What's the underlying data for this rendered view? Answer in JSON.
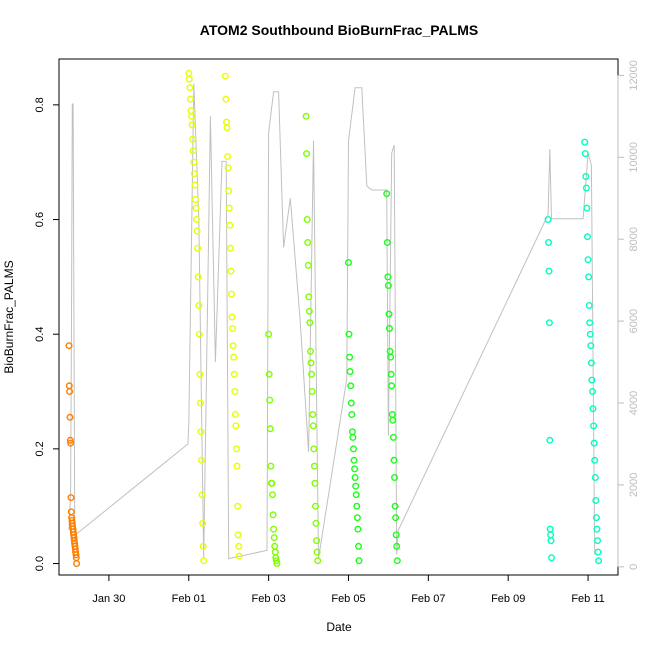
{
  "chart_data": {
    "type": "scatter",
    "title": "ATOM2 Southbound BioBurnFrac_PALMS",
    "xlabel": "Date",
    "ylabel": "BioBurnFrac_PALMS",
    "x_ticks": [
      "Jan 30",
      "Feb 01",
      "Feb 03",
      "Feb 05",
      "Feb 07",
      "Feb 09",
      "Feb 11"
    ],
    "y_ticks": [
      "0.0",
      "0.2",
      "0.4",
      "0.6",
      "0.8"
    ],
    "y2_ticks": [
      "0",
      "2000",
      "4000",
      "6000",
      "8000",
      "10000",
      "12000"
    ],
    "xlim": [
      "2017-01-28 18:00",
      "2017-02-11 18:00"
    ],
    "ylim": [
      -0.02,
      0.88
    ],
    "y2lim": [
      -200,
      12400
    ],
    "grid": false,
    "legend": "none",
    "secondary_series": {
      "axis": "right",
      "color": "#c0c0c0",
      "x": [
        "2017-01-29 00:00",
        "2017-01-29 01:00",
        "2017-01-29 01:30",
        "2017-01-29 02:00",
        "2017-01-29 02:30",
        "2017-01-29 03:30",
        "2017-01-29 04:30",
        "2017-01-31 23:30",
        "2017-02-01 00:00",
        "2017-02-01 03:00",
        "2017-02-01 06:00",
        "2017-02-01 09:00",
        "2017-02-01 13:00",
        "2017-02-01 16:00",
        "2017-02-01 20:00",
        "2017-02-01 22:30",
        "2017-02-02 00:00",
        "2017-02-02 23:00",
        "2017-02-03 00:00",
        "2017-02-03 03:00",
        "2017-02-03 06:00",
        "2017-02-03 09:00",
        "2017-02-03 13:00",
        "2017-02-03 19:00",
        "2017-02-04 00:00",
        "2017-02-04 03:00",
        "2017-02-04 06:00",
        "2017-02-04 23:00",
        "2017-02-05 00:00",
        "2017-02-05 04:00",
        "2017-02-05 08:00",
        "2017-02-05 11:00",
        "2017-02-05 14:00",
        "2017-02-05 23:00",
        "2017-02-06 00:00",
        "2017-02-06 02:00",
        "2017-02-06 03:30",
        "2017-02-06 05:00",
        "2017-02-06 06:00",
        "2017-02-10 00:00",
        "2017-02-10 01:00",
        "2017-02-10 02:00",
        "2017-02-10 03:00",
        "2017-02-10 21:00",
        "2017-02-11 00:00",
        "2017-02-11 02:00",
        "2017-02-11 04:00"
      ],
      "values": [
        900,
        1800,
        6000,
        11300,
        11300,
        600,
        800,
        3000,
        3500,
        11800,
        8500,
        200,
        11000,
        5000,
        9900,
        9900,
        200,
        400,
        10600,
        11600,
        11600,
        7800,
        9000,
        6000,
        2800,
        10400,
        200,
        4600,
        10400,
        11700,
        11700,
        9300,
        9200,
        9200,
        3200,
        10100,
        10300,
        300,
        900,
        8600,
        10200,
        8500,
        8500,
        8500,
        10100,
        9800,
        300
      ]
    },
    "series": [
      {
        "color": "#ff7f00",
        "x": [
          "2017-01-29 00:00",
          "2017-01-29 00:12",
          "2017-01-29 00:24",
          "2017-01-29 00:36",
          "2017-01-29 00:48",
          "2017-01-29 01:00",
          "2017-01-29 01:12",
          "2017-01-29 01:24",
          "2017-01-29 01:36",
          "2017-01-29 01:48",
          "2017-01-29 02:00",
          "2017-01-29 02:12",
          "2017-01-29 02:24",
          "2017-01-29 02:36",
          "2017-01-29 02:48",
          "2017-01-29 03:00",
          "2017-01-29 03:12",
          "2017-01-29 03:24",
          "2017-01-29 03:36",
          "2017-01-29 03:48",
          "2017-01-29 04:00",
          "2017-01-29 04:12",
          "2017-01-29 04:24",
          "2017-01-29 04:36"
        ],
        "values": [
          0.38,
          0.31,
          0.3,
          0.255,
          0.215,
          0.21,
          0.115,
          0.09,
          0.08,
          0.075,
          0.07,
          0.065,
          0.06,
          0.055,
          0.05,
          0.045,
          0.04,
          0.035,
          0.03,
          0.025,
          0.02,
          0.015,
          0.01,
          0.0
        ]
      },
      {
        "color": "#e6ff00",
        "x": [
          "2017-02-01 00:00",
          "2017-02-01 00:20",
          "2017-02-01 00:40",
          "2017-02-01 01:00",
          "2017-02-01 01:20",
          "2017-02-01 01:40",
          "2017-02-01 02:00",
          "2017-02-01 02:20",
          "2017-02-01 02:40",
          "2017-02-01 03:00",
          "2017-02-01 03:20",
          "2017-02-01 03:40",
          "2017-02-01 04:00",
          "2017-02-01 04:20",
          "2017-02-01 04:40",
          "2017-02-01 05:00",
          "2017-02-01 05:20",
          "2017-02-01 05:40",
          "2017-02-01 06:00",
          "2017-02-01 06:20",
          "2017-02-01 06:40",
          "2017-02-01 07:00",
          "2017-02-01 07:20",
          "2017-02-01 07:40",
          "2017-02-01 08:00",
          "2017-02-01 08:20",
          "2017-02-01 08:40",
          "2017-02-01 09:00",
          "2017-02-01 22:00",
          "2017-02-01 22:20",
          "2017-02-01 22:40",
          "2017-02-01 23:00",
          "2017-02-01 23:20",
          "2017-02-01 23:40",
          "2017-02-02 00:00",
          "2017-02-02 00:20",
          "2017-02-02 00:40",
          "2017-02-02 01:00",
          "2017-02-02 01:20",
          "2017-02-02 01:40",
          "2017-02-02 02:00",
          "2017-02-02 02:20",
          "2017-02-02 02:40",
          "2017-02-02 03:00",
          "2017-02-02 03:20",
          "2017-02-02 03:40",
          "2017-02-02 04:00",
          "2017-02-02 04:20",
          "2017-02-02 04:40",
          "2017-02-02 05:00",
          "2017-02-02 05:20",
          "2017-02-02 05:40",
          "2017-02-02 06:00",
          "2017-02-02 06:20"
        ],
        "values": [
          0.855,
          0.845,
          0.83,
          0.81,
          0.79,
          0.78,
          0.765,
          0.74,
          0.72,
          0.7,
          0.68,
          0.66,
          0.635,
          0.62,
          0.6,
          0.58,
          0.55,
          0.5,
          0.45,
          0.4,
          0.33,
          0.28,
          0.23,
          0.18,
          0.12,
          0.07,
          0.03,
          0.005,
          0.85,
          0.81,
          0.77,
          0.76,
          0.71,
          0.69,
          0.65,
          0.62,
          0.59,
          0.55,
          0.51,
          0.47,
          0.43,
          0.41,
          0.38,
          0.36,
          0.33,
          0.3,
          0.26,
          0.24,
          0.2,
          0.17,
          0.1,
          0.05,
          0.03,
          0.013
        ]
      },
      {
        "color": "#80ff00",
        "x": [
          "2017-02-03 00:00",
          "2017-02-03 00:20",
          "2017-02-03 00:40",
          "2017-02-03 01:00",
          "2017-02-03 01:20",
          "2017-02-03 01:40",
          "2017-02-03 02:00",
          "2017-02-03 02:20",
          "2017-02-03 02:40",
          "2017-02-03 03:00",
          "2017-02-03 03:20",
          "2017-02-03 03:40",
          "2017-02-03 04:00",
          "2017-02-03 04:20",
          "2017-02-03 04:40",
          "2017-02-03 05:00",
          "2017-02-03 22:30",
          "2017-02-03 22:50",
          "2017-02-03 23:10",
          "2017-02-03 23:30",
          "2017-02-03 23:50",
          "2017-02-04 00:10",
          "2017-02-04 00:30",
          "2017-02-04 00:50",
          "2017-02-04 01:10",
          "2017-02-04 01:30",
          "2017-02-04 01:50",
          "2017-02-04 02:10",
          "2017-02-04 02:30",
          "2017-02-04 02:50",
          "2017-02-04 03:10",
          "2017-02-04 03:30",
          "2017-02-04 03:50",
          "2017-02-04 04:10",
          "2017-02-04 04:30",
          "2017-02-04 04:50",
          "2017-02-04 05:10",
          "2017-02-04 05:30"
        ],
        "values": [
          0.4,
          0.33,
          0.285,
          0.235,
          0.17,
          0.14,
          0.14,
          0.12,
          0.085,
          0.06,
          0.045,
          0.03,
          0.02,
          0.01,
          0.005,
          0.0,
          0.78,
          0.715,
          0.6,
          0.56,
          0.52,
          0.465,
          0.44,
          0.42,
          0.37,
          0.35,
          0.33,
          0.3,
          0.26,
          0.24,
          0.2,
          0.17,
          0.14,
          0.1,
          0.07,
          0.04,
          0.02,
          0.005
        ]
      },
      {
        "color": "#1aff1a",
        "x": [
          "2017-02-05 00:00",
          "2017-02-05 00:20",
          "2017-02-05 00:40",
          "2017-02-05 01:00",
          "2017-02-05 01:20",
          "2017-02-05 01:40",
          "2017-02-05 02:00",
          "2017-02-05 02:20",
          "2017-02-05 02:40",
          "2017-02-05 03:00",
          "2017-02-05 03:20",
          "2017-02-05 03:40",
          "2017-02-05 04:00",
          "2017-02-05 04:20",
          "2017-02-05 04:40",
          "2017-02-05 05:00",
          "2017-02-05 05:20",
          "2017-02-05 05:40",
          "2017-02-05 06:00",
          "2017-02-05 06:20",
          "2017-02-05 23:00",
          "2017-02-05 23:20",
          "2017-02-05 23:40",
          "2017-02-06 00:00",
          "2017-02-06 00:20",
          "2017-02-06 00:40",
          "2017-02-06 01:00",
          "2017-02-06 01:20",
          "2017-02-06 01:40",
          "2017-02-06 02:00",
          "2017-02-06 02:20",
          "2017-02-06 02:40",
          "2017-02-06 03:00",
          "2017-02-06 03:20",
          "2017-02-06 03:40",
          "2017-02-06 04:00",
          "2017-02-06 04:20",
          "2017-02-06 04:40",
          "2017-02-06 05:00",
          "2017-02-06 05:20"
        ],
        "values": [
          0.525,
          0.4,
          0.36,
          0.335,
          0.31,
          0.28,
          0.26,
          0.23,
          0.22,
          0.2,
          0.18,
          0.165,
          0.15,
          0.135,
          0.12,
          0.1,
          0.08,
          0.06,
          0.03,
          0.005,
          0.645,
          0.56,
          0.5,
          0.485,
          0.435,
          0.41,
          0.37,
          0.36,
          0.33,
          0.31,
          0.26,
          0.25,
          0.22,
          0.18,
          0.15,
          0.1,
          0.08,
          0.05,
          0.03,
          0.005
        ]
      },
      {
        "color": "#00ffbf",
        "x": [
          "2017-02-10 00:00",
          "2017-02-10 00:15",
          "2017-02-10 00:30",
          "2017-02-10 00:45",
          "2017-02-10 01:00",
          "2017-02-10 01:15",
          "2017-02-10 01:30",
          "2017-02-10 01:45",
          "2017-02-10 02:00",
          "2017-02-10 22:00",
          "2017-02-10 22:20",
          "2017-02-10 22:40",
          "2017-02-10 23:00",
          "2017-02-10 23:20",
          "2017-02-10 23:40",
          "2017-02-11 00:00",
          "2017-02-11 00:20",
          "2017-02-11 00:40",
          "2017-02-11 01:00",
          "2017-02-11 01:20",
          "2017-02-11 01:40",
          "2017-02-11 02:00",
          "2017-02-11 02:20",
          "2017-02-11 02:40",
          "2017-02-11 03:00",
          "2017-02-11 03:20",
          "2017-02-11 03:40",
          "2017-02-11 04:00",
          "2017-02-11 04:20",
          "2017-02-11 04:40",
          "2017-02-11 05:00",
          "2017-02-11 05:20",
          "2017-02-11 05:40",
          "2017-02-11 06:00",
          "2017-02-11 06:20"
        ],
        "values": [
          0.6,
          0.56,
          0.51,
          0.42,
          0.215,
          0.06,
          0.05,
          0.04,
          0.01,
          0.735,
          0.715,
          0.675,
          0.655,
          0.62,
          0.57,
          0.53,
          0.5,
          0.45,
          0.42,
          0.4,
          0.38,
          0.35,
          0.32,
          0.3,
          0.27,
          0.24,
          0.21,
          0.18,
          0.15,
          0.11,
          0.08,
          0.06,
          0.04,
          0.02,
          0.005
        ]
      }
    ]
  }
}
